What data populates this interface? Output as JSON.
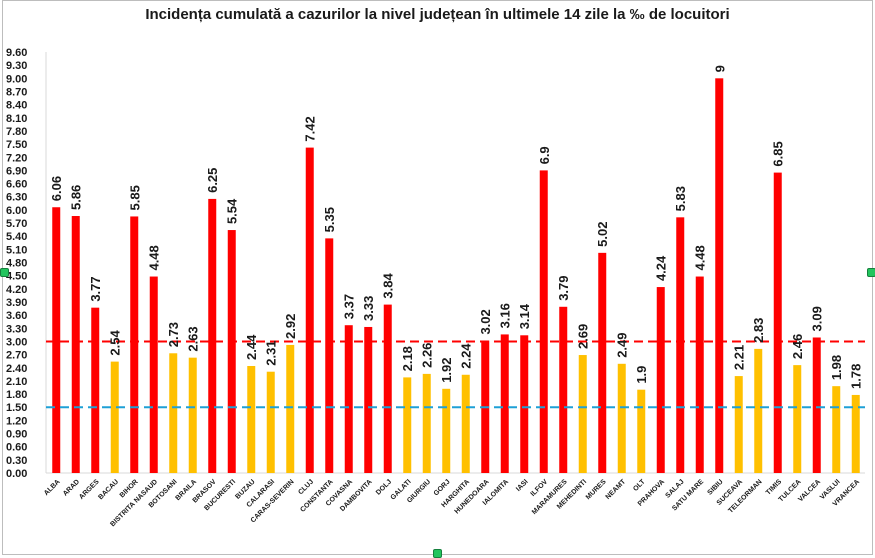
{
  "chart_data": {
    "type": "bar",
    "title": "Incidența cumulată a cazurilor la nivel județean în ultimele 14 zile la ‰ de locuitori",
    "xlabel": "",
    "ylabel": "",
    "ylim": [
      0,
      9.6
    ],
    "y_ticks": [
      "0.00",
      "0.30",
      "0.60",
      "0.90",
      "1.20",
      "1.50",
      "1.80",
      "2.10",
      "2.40",
      "2.70",
      "3.00",
      "3.30",
      "3.60",
      "3.90",
      "4.20",
      "4.50",
      "4.80",
      "5.10",
      "5.40",
      "5.70",
      "6.00",
      "6.30",
      "6.60",
      "6.90",
      "7.20",
      "7.50",
      "7.80",
      "8.10",
      "8.40",
      "8.70",
      "9.00",
      "9.30",
      "9.60"
    ],
    "categories": [
      "ALBA",
      "ARAD",
      "ARGES",
      "BACAU",
      "BIHOR",
      "BISTRITA NASAUD",
      "BOTOSANI",
      "BRAILA",
      "BRASOV",
      "BUCURESTI",
      "BUZAU",
      "CALARASI",
      "CARAS-SEVERIN",
      "CLUJ",
      "CONSTANTA",
      "COVASNA",
      "DAMBOVITA",
      "DOLJ",
      "GALATI",
      "GIURGIU",
      "GORJ",
      "HARGHITA",
      "HUNEDOARA",
      "IALOMITA",
      "IASI",
      "ILFOV",
      "MARAMURES",
      "MEHEDINTI",
      "MURES",
      "NEAMT",
      "OLT",
      "PRAHOVA",
      "SALAJ",
      "SATU MARE",
      "SIBIU",
      "SUCEAVA",
      "TELEORMAN",
      "TIMIS",
      "TULCEA",
      "VALCEA",
      "VASLUI",
      "VRANCEA"
    ],
    "values": [
      6.06,
      5.86,
      3.77,
      2.54,
      5.85,
      4.48,
      2.73,
      2.63,
      6.25,
      5.54,
      2.44,
      2.31,
      2.92,
      7.42,
      5.35,
      3.37,
      3.33,
      3.84,
      2.18,
      2.26,
      1.92,
      2.24,
      3.02,
      3.16,
      3.14,
      6.9,
      3.79,
      2.69,
      5.02,
      2.49,
      1.9,
      4.24,
      5.83,
      4.48,
      9,
      2.21,
      2.83,
      6.85,
      2.46,
      3.09,
      1.98,
      1.78
    ],
    "value_labels": [
      "6.06",
      "5.86",
      "3.77",
      "2.54",
      "5.85",
      "4.48",
      "2.73",
      "2.63",
      "6.25",
      "5.54",
      "2.44",
      "2.31",
      "2.92",
      "7.42",
      "5.35",
      "3.37",
      "3.33",
      "3.84",
      "2.18",
      "2.26",
      "1.92",
      "2.24",
      "3.02",
      "3.16",
      "3.14",
      "6.9",
      "3.79",
      "2.69",
      "5.02",
      "2.49",
      "1.9",
      "4.24",
      "5.83",
      "4.48",
      "9",
      "2.21",
      "2.83",
      "6.85",
      "2.46",
      "3.09",
      "1.98",
      "1.78"
    ],
    "reference_lines": [
      {
        "value": 3.0,
        "color": "#ff0000",
        "style": "dashed"
      },
      {
        "value": 1.5,
        "color": "#1ea0d6",
        "style": "dashed"
      }
    ],
    "colors": {
      "above": "#ff0000",
      "below": "#ffc000",
      "text": "#1a1a1a",
      "axis": "#d9d9d9"
    },
    "grid": false,
    "legend": "none"
  }
}
